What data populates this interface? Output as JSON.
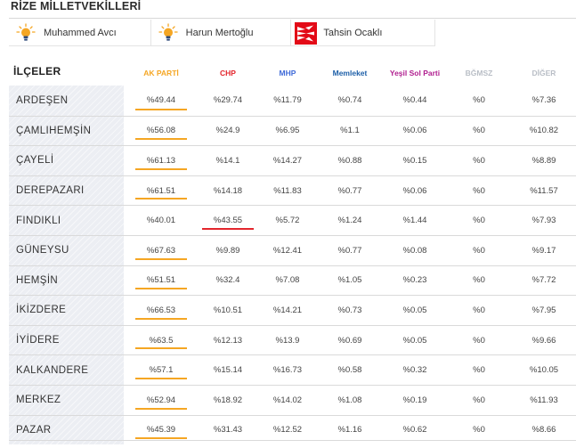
{
  "page": {
    "title": "RİZE MİLLETVEKİLLERİ"
  },
  "deputies": [
    {
      "name": "Muhammed Avcı",
      "party_icon": "ak-parti-bulb-icon"
    },
    {
      "name": "Harun Mertoğlu",
      "party_icon": "ak-parti-bulb-icon"
    },
    {
      "name": "Tahsin Ocaklı",
      "party_icon": "chp-arrows-icon"
    }
  ],
  "table": {
    "district_header": "İLÇELER",
    "columns": [
      {
        "label": "AK PARTİ",
        "color": "#f5a623"
      },
      {
        "label": "CHP",
        "color": "#e3262d"
      },
      {
        "label": "MHP",
        "color": "#3f6ad8"
      },
      {
        "label": "Memleket",
        "color": "#1d5fa8"
      },
      {
        "label": "Yeşil Sol Parti",
        "color": "#b01e8f"
      },
      {
        "label": "BĞMSZ",
        "color": "#b9bec6"
      },
      {
        "label": "DİĞER",
        "color": "#b9bec6"
      }
    ],
    "rows": [
      {
        "district": "ARDEŞEN",
        "values": [
          "%49.44",
          "%29.74",
          "%11.79",
          "%0.74",
          "%0.44",
          "%0",
          "%7.36"
        ],
        "winner": 0
      },
      {
        "district": "ÇAMLIHEMŞİN",
        "values": [
          "%56.08",
          "%24.9",
          "%6.95",
          "%1.1",
          "%0.06",
          "%0",
          "%10.82"
        ],
        "winner": 0
      },
      {
        "district": "ÇAYELİ",
        "values": [
          "%61.13",
          "%14.1",
          "%14.27",
          "%0.88",
          "%0.15",
          "%0",
          "%8.89"
        ],
        "winner": 0
      },
      {
        "district": "DEREPAZARI",
        "values": [
          "%61.51",
          "%14.18",
          "%11.83",
          "%0.77",
          "%0.06",
          "%0",
          "%11.57"
        ],
        "winner": 0
      },
      {
        "district": "FINDIKLI",
        "values": [
          "%40.01",
          "%43.55",
          "%5.72",
          "%1.24",
          "%1.44",
          "%0",
          "%7.93"
        ],
        "winner": 1
      },
      {
        "district": "GÜNEYSU",
        "values": [
          "%67.63",
          "%9.89",
          "%12.41",
          "%0.77",
          "%0.08",
          "%0",
          "%9.17"
        ],
        "winner": 0
      },
      {
        "district": "HEMŞİN",
        "values": [
          "%51.51",
          "%32.4",
          "%7.08",
          "%1.05",
          "%0.23",
          "%0",
          "%7.72"
        ],
        "winner": 0
      },
      {
        "district": "İKİZDERE",
        "values": [
          "%66.53",
          "%10.51",
          "%14.21",
          "%0.73",
          "%0.05",
          "%0",
          "%7.95"
        ],
        "winner": 0
      },
      {
        "district": "İYİDERE",
        "values": [
          "%63.5",
          "%12.13",
          "%13.9",
          "%0.69",
          "%0.05",
          "%0",
          "%9.66"
        ],
        "winner": 0
      },
      {
        "district": "KALKANDERE",
        "values": [
          "%57.1",
          "%15.14",
          "%16.73",
          "%0.58",
          "%0.32",
          "%0",
          "%10.05"
        ],
        "winner": 0
      },
      {
        "district": "MERKEZ",
        "values": [
          "%52.94",
          "%18.92",
          "%14.02",
          "%1.08",
          "%0.19",
          "%0",
          "%11.93"
        ],
        "winner": 0
      },
      {
        "district": "PAZAR",
        "values": [
          "%45.39",
          "%31.43",
          "%12.52",
          "%1.16",
          "%0.62",
          "%0",
          "%8.66"
        ],
        "winner": 0
      }
    ]
  }
}
